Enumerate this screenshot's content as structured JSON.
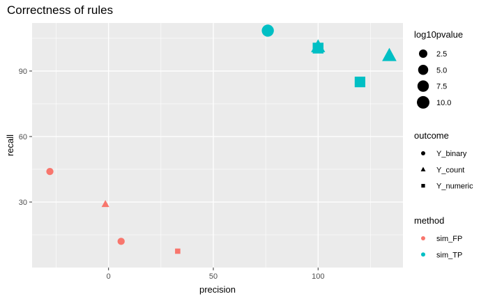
{
  "chart_data": {
    "type": "scatter",
    "title": "Correctness of rules",
    "xlabel": "precision",
    "ylabel": "recall",
    "xlim": [
      -36.5,
      140.5
    ],
    "ylim": [
      0,
      112
    ],
    "x_ticks": [
      0,
      50,
      100
    ],
    "y_ticks": [
      30,
      60,
      90
    ],
    "grid": true,
    "points": [
      {
        "x": -28,
        "y": 44,
        "log10pvalue": 1.3,
        "outcome": "Y_binary",
        "method": "sim_FP"
      },
      {
        "x": -1.5,
        "y": 29,
        "log10pvalue": 0.9,
        "outcome": "Y_count",
        "method": "sim_FP"
      },
      {
        "x": 6,
        "y": 12,
        "log10pvalue": 1.3,
        "outcome": "Y_binary",
        "method": "sim_FP"
      },
      {
        "x": 33,
        "y": 7.5,
        "log10pvalue": 0.5,
        "outcome": "Y_numeric",
        "method": "sim_FP"
      },
      {
        "x": 76,
        "y": 108.5,
        "log10pvalue": 9.0,
        "outcome": "Y_binary",
        "method": "sim_TP"
      },
      {
        "x": 100,
        "y": 101,
        "log10pvalue": 9.5,
        "outcome": "Y_count",
        "method": "sim_TP"
      },
      {
        "x": 100,
        "y": 100.5,
        "log10pvalue": 9.5,
        "outcome": "Y_numeric",
        "method": "sim_TP"
      },
      {
        "x": 120,
        "y": 85,
        "log10pvalue": 9.0,
        "outcome": "Y_numeric",
        "method": "sim_TP"
      },
      {
        "x": 134,
        "y": 97,
        "log10pvalue": 10.0,
        "outcome": "Y_count",
        "method": "sim_TP"
      }
    ],
    "legends": {
      "size": {
        "title": "log10pvalue",
        "entries": [
          "2.5",
          "5.0",
          "7.5",
          "10.0"
        ],
        "values": [
          2.5,
          5.0,
          7.5,
          10.0
        ]
      },
      "shape": {
        "title": "outcome",
        "entries": [
          "Y_binary",
          "Y_count",
          "Y_numeric"
        ]
      },
      "color": {
        "title": "method",
        "entries": [
          "sim_FP",
          "sim_TP"
        ]
      }
    },
    "legend_position": "right",
    "colors": {
      "sim_FP": "#F8766D",
      "sim_TP": "#00BFC4",
      "panel": "#EBEBEB",
      "grid": "#FFFFFF"
    }
  }
}
